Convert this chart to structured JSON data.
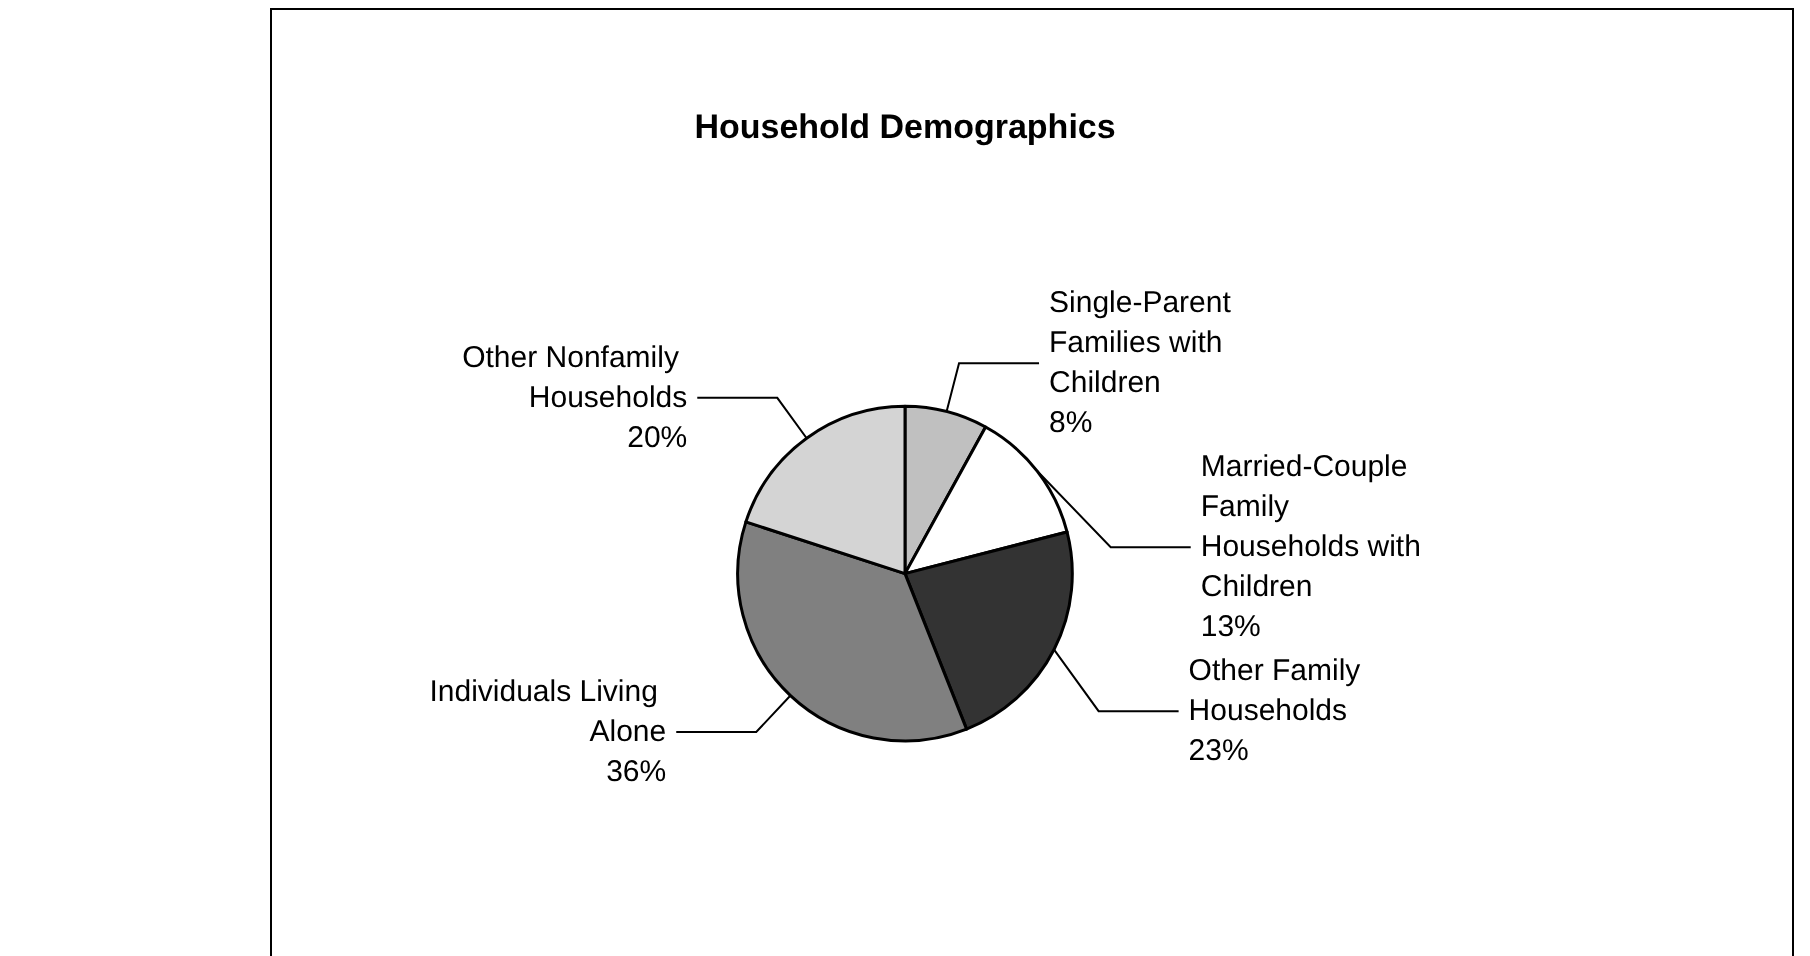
{
  "chart_data": {
    "type": "pie",
    "title": "Household Demographics",
    "categories": [
      "Single-Parent Families with Children",
      "Married-Couple Family Households with Children",
      "Other Family Households",
      "Individuals Living Alone",
      "Other Nonfamily Households"
    ],
    "values": [
      8,
      13,
      23,
      36,
      20
    ],
    "value_labels": [
      "8%",
      "13%",
      "23%",
      "36%",
      "20%"
    ],
    "colors": [
      "#c0c0c0",
      "#ffffff",
      "#333333",
      "#808080",
      "#d4d4d4"
    ],
    "legend": false
  }
}
